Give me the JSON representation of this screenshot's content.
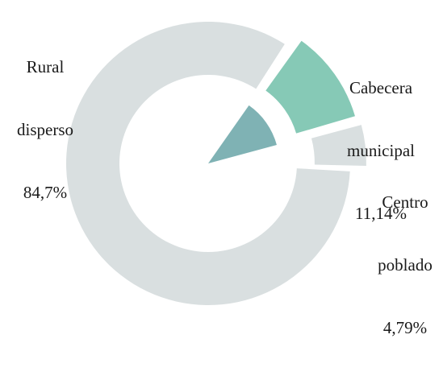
{
  "chart_data": {
    "type": "pie",
    "title": "",
    "slices": [
      {
        "name": "Rural disperso",
        "value_label": "84,7%",
        "value": 84.7,
        "color": "#d9dfe0",
        "inner_color": "#d9dfe0",
        "exploded": false
      },
      {
        "name": "Cabecera municipal",
        "value_label": "11,14%",
        "value": 11.14,
        "color": "#86c9b6",
        "inner_color": "#7fb2b4",
        "exploded": true
      },
      {
        "name": "Centro poblado",
        "value_label": "4,79%",
        "value": 4.79,
        "color": "#d9dfe0",
        "inner_color": "#d9dfe0",
        "exploded": true
      }
    ],
    "labels": [
      {
        "lines": [
          "Rural",
          "disperso",
          "84,7%"
        ]
      },
      {
        "lines": [
          "Cabecera",
          "municipal",
          "11,14%"
        ]
      },
      {
        "lines": [
          "Centro",
          "poblado",
          "4,79%"
        ]
      }
    ]
  }
}
